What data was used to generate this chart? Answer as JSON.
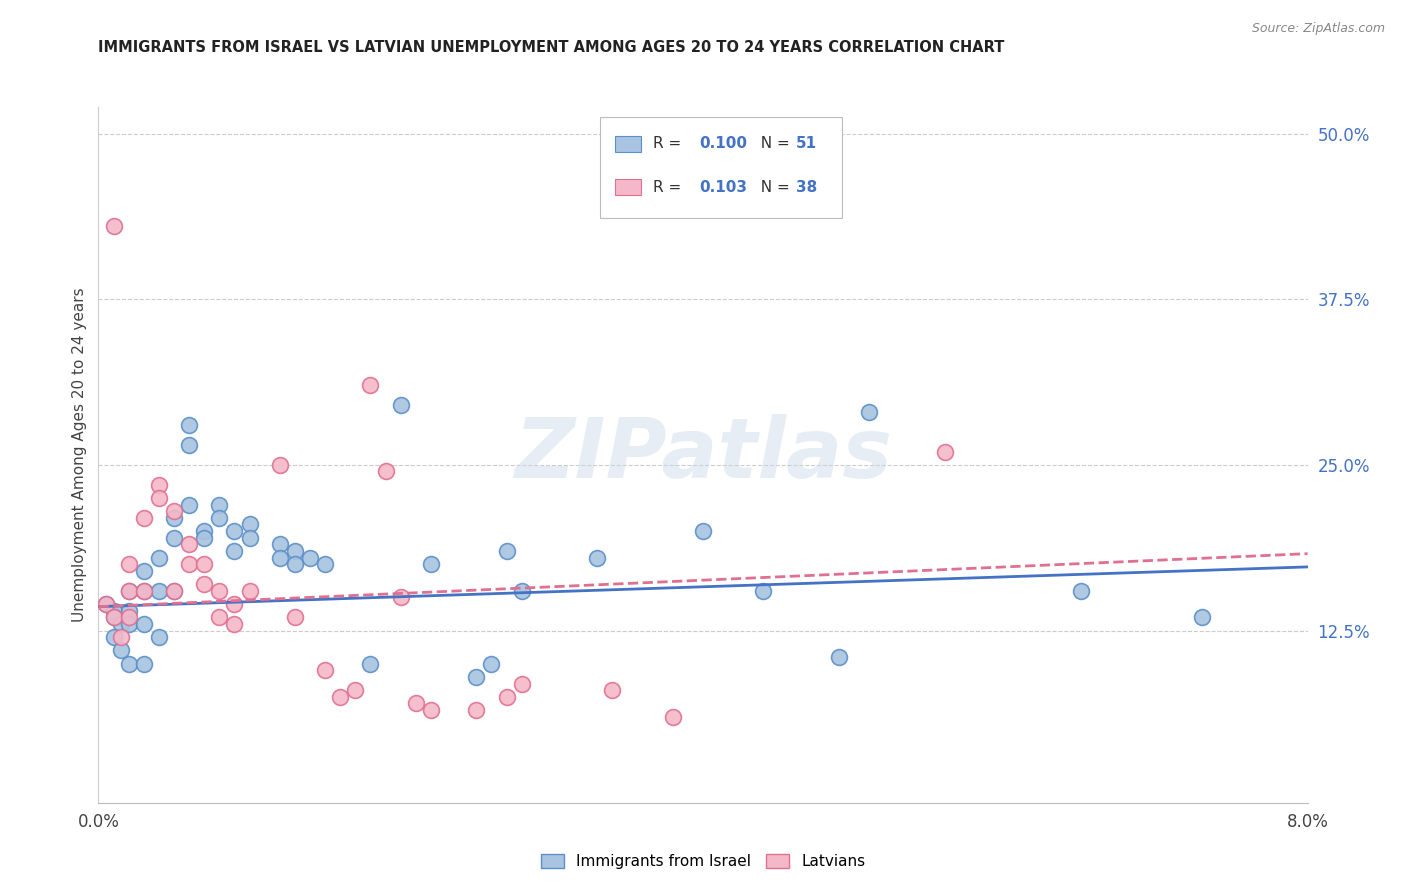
{
  "title": "IMMIGRANTS FROM ISRAEL VS LATVIAN UNEMPLOYMENT AMONG AGES 20 TO 24 YEARS CORRELATION CHART",
  "source": "Source: ZipAtlas.com",
  "ylabel": "Unemployment Among Ages 20 to 24 years",
  "xlim": [
    0.0,
    0.08
  ],
  "ylim": [
    -0.005,
    0.52
  ],
  "xticks": [
    0.0,
    0.01,
    0.02,
    0.03,
    0.04,
    0.05,
    0.06,
    0.07,
    0.08
  ],
  "xticklabels": [
    "0.0%",
    "",
    "",
    "",
    "",
    "",
    "",
    "",
    "8.0%"
  ],
  "yticks_right": [
    0.125,
    0.25,
    0.375,
    0.5
  ],
  "yticks_right_labels": [
    "12.5%",
    "25.0%",
    "37.5%",
    "50.0%"
  ],
  "blue_fill": "#a8c4e0",
  "blue_edge": "#5b8fc9",
  "pink_fill": "#f4b8c8",
  "pink_edge": "#e07090",
  "blue_line_color": "#4472c4",
  "pink_line_color": "#e07090",
  "right_axis_color": "#4472c4",
  "legend_R1": "0.100",
  "legend_N1": "51",
  "legend_R2": "0.103",
  "legend_N2": "38",
  "legend_label1": "Immigrants from Israel",
  "legend_label2": "Latvians",
  "watermark": "ZIPatlas",
  "blue_scatter_x": [
    0.0005,
    0.001,
    0.001,
    0.0015,
    0.001,
    0.0015,
    0.002,
    0.002,
    0.002,
    0.002,
    0.003,
    0.003,
    0.003,
    0.003,
    0.004,
    0.004,
    0.004,
    0.005,
    0.005,
    0.005,
    0.006,
    0.006,
    0.006,
    0.007,
    0.007,
    0.008,
    0.008,
    0.009,
    0.009,
    0.01,
    0.01,
    0.012,
    0.012,
    0.013,
    0.013,
    0.014,
    0.015,
    0.018,
    0.02,
    0.022,
    0.025,
    0.026,
    0.027,
    0.028,
    0.033,
    0.04,
    0.044,
    0.049,
    0.051,
    0.065,
    0.073
  ],
  "blue_scatter_y": [
    0.145,
    0.14,
    0.135,
    0.13,
    0.12,
    0.11,
    0.155,
    0.14,
    0.13,
    0.1,
    0.17,
    0.155,
    0.13,
    0.1,
    0.18,
    0.155,
    0.12,
    0.21,
    0.195,
    0.155,
    0.28,
    0.265,
    0.22,
    0.2,
    0.195,
    0.22,
    0.21,
    0.2,
    0.185,
    0.205,
    0.195,
    0.19,
    0.18,
    0.185,
    0.175,
    0.18,
    0.175,
    0.1,
    0.295,
    0.175,
    0.09,
    0.1,
    0.185,
    0.155,
    0.18,
    0.2,
    0.155,
    0.105,
    0.29,
    0.155,
    0.135
  ],
  "pink_scatter_x": [
    0.0005,
    0.001,
    0.001,
    0.0015,
    0.002,
    0.002,
    0.002,
    0.003,
    0.003,
    0.004,
    0.004,
    0.005,
    0.005,
    0.006,
    0.006,
    0.007,
    0.007,
    0.008,
    0.008,
    0.009,
    0.009,
    0.01,
    0.012,
    0.013,
    0.015,
    0.016,
    0.017,
    0.018,
    0.019,
    0.02,
    0.021,
    0.022,
    0.025,
    0.027,
    0.028,
    0.034,
    0.038,
    0.056
  ],
  "pink_scatter_y": [
    0.145,
    0.43,
    0.135,
    0.12,
    0.175,
    0.155,
    0.135,
    0.21,
    0.155,
    0.235,
    0.225,
    0.215,
    0.155,
    0.19,
    0.175,
    0.175,
    0.16,
    0.155,
    0.135,
    0.145,
    0.13,
    0.155,
    0.25,
    0.135,
    0.095,
    0.075,
    0.08,
    0.31,
    0.245,
    0.15,
    0.07,
    0.065,
    0.065,
    0.075,
    0.085,
    0.08,
    0.06,
    0.26
  ],
  "blue_trend_x": [
    0.0,
    0.08
  ],
  "blue_trend_y": [
    0.143,
    0.173
  ],
  "pink_trend_x": [
    0.0,
    0.08
  ],
  "pink_trend_y": [
    0.143,
    0.183
  ]
}
